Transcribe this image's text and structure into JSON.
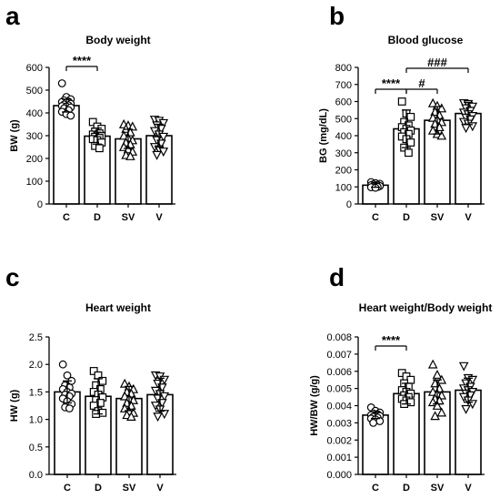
{
  "chart_data": [
    {
      "panel": "a",
      "type": "bar",
      "title": "Body weight",
      "ylabel": "BW (g)",
      "ylim": [
        0,
        600
      ],
      "yticks": [
        "0",
        "100",
        "200",
        "300",
        "400",
        "500",
        "600"
      ],
      "categories": [
        "C",
        "D",
        "SV",
        "V"
      ],
      "values": [
        432,
        298,
        286,
        300
      ],
      "errors": [
        28,
        35,
        42,
        50
      ],
      "markers": [
        "circle",
        "square",
        "triangle-up",
        "triangle-down"
      ],
      "points": [
        [
          530,
          470,
          460,
          455,
          450,
          448,
          445,
          440,
          437,
          433,
          430,
          428,
          424,
          420,
          412,
          405,
          395,
          388
        ],
        [
          360,
          340,
          330,
          318,
          310,
          305,
          300,
          298,
          295,
          290,
          285,
          280,
          270,
          255,
          245
        ],
        [
          350,
          345,
          340,
          330,
          315,
          300,
          290,
          280,
          270,
          262,
          250,
          240,
          230,
          215,
          210
        ],
        [
          370,
          365,
          355,
          345,
          330,
          320,
          305,
          295,
          280,
          265,
          250,
          240,
          230,
          215
        ]
      ],
      "annotations": [
        {
          "from": "C",
          "to": "D",
          "label": "****"
        }
      ]
    },
    {
      "panel": "b",
      "type": "bar",
      "title": "Blood glucose",
      "ylabel": "BG (mg/dL)",
      "ylim": [
        0,
        800
      ],
      "yticks": [
        "0",
        "100",
        "200",
        "300",
        "400",
        "500",
        "600",
        "700",
        "800"
      ],
      "categories": [
        "C",
        "D",
        "SV",
        "V"
      ],
      "values": [
        110,
        440,
        490,
        530
      ],
      "errors": [
        12,
        110,
        80,
        65
      ],
      "markers": [
        "circle",
        "square",
        "triangle-up",
        "triangle-down"
      ],
      "points": [
        [
          128,
          122,
          118,
          115,
          112,
          110,
          108,
          105,
          103,
          100,
          98,
          95
        ],
        [
          600,
          530,
          510,
          480,
          460,
          450,
          440,
          430,
          420,
          410,
          395,
          380,
          360,
          330,
          300
        ],
        [
          590,
          575,
          560,
          540,
          520,
          505,
          495,
          480,
          470,
          450,
          430,
          410,
          400
        ],
        [
          590,
          585,
          570,
          560,
          545,
          535,
          525,
          515,
          505,
          495,
          480,
          470,
          455,
          445
        ]
      ],
      "annotations": [
        {
          "from": "C",
          "to": "D",
          "label": "****"
        },
        {
          "from": "D",
          "to": "SV",
          "label": "#"
        },
        {
          "from": "D",
          "to": "V",
          "label": "###"
        }
      ]
    },
    {
      "panel": "c",
      "type": "bar",
      "title": "Heart weight",
      "ylabel": "HW (g)",
      "ylim": [
        0,
        2.5
      ],
      "yticks": [
        "0.0",
        "0.5",
        "1.0",
        "1.5",
        "2.0",
        "2.5"
      ],
      "categories": [
        "C",
        "D",
        "SV",
        "V"
      ],
      "values": [
        1.5,
        1.42,
        1.38,
        1.45
      ],
      "errors": [
        0.2,
        0.32,
        0.22,
        0.3
      ],
      "markers": [
        "circle",
        "square",
        "triangle-up",
        "triangle-down"
      ],
      "points": [
        [
          2.0,
          1.8,
          1.7,
          1.62,
          1.58,
          1.55,
          1.5,
          1.47,
          1.45,
          1.42,
          1.38,
          1.33,
          1.28,
          1.22,
          1.2
        ],
        [
          1.88,
          1.8,
          1.7,
          1.62,
          1.55,
          1.5,
          1.45,
          1.4,
          1.35,
          1.3,
          1.25,
          1.15,
          1.12,
          1.1
        ],
        [
          1.65,
          1.6,
          1.55,
          1.5,
          1.47,
          1.42,
          1.38,
          1.35,
          1.3,
          1.25,
          1.2,
          1.15,
          1.12,
          1.08,
          1.05
        ],
        [
          1.8,
          1.78,
          1.72,
          1.65,
          1.58,
          1.52,
          1.46,
          1.42,
          1.38,
          1.3,
          1.25,
          1.18,
          1.1,
          1.05
        ]
      ],
      "annotations": []
    },
    {
      "panel": "d",
      "type": "bar",
      "title": "Heart weight/Body weight",
      "ylabel": "HW/BW (g/g)",
      "ylim": [
        0,
        0.008
      ],
      "yticks": [
        "0.000",
        "0.001",
        "0.002",
        "0.003",
        "0.004",
        "0.005",
        "0.006",
        "0.007",
        "0.008"
      ],
      "categories": [
        "C",
        "D",
        "SV",
        "V"
      ],
      "values": [
        0.00345,
        0.0047,
        0.0048,
        0.0049
      ],
      "errors": [
        0.0002,
        0.0006,
        0.0007,
        0.0007
      ],
      "markers": [
        "circle",
        "square",
        "triangle-up",
        "triangle-down"
      ],
      "points": [
        [
          0.0039,
          0.0037,
          0.0036,
          0.00355,
          0.0035,
          0.00345,
          0.0034,
          0.0034,
          0.00335,
          0.0033,
          0.00325,
          0.0032,
          0.0031,
          0.003
        ],
        [
          0.0059,
          0.0057,
          0.0055,
          0.0053,
          0.0051,
          0.0049,
          0.0048,
          0.0047,
          0.0046,
          0.0045,
          0.0044,
          0.0043,
          0.0042,
          0.0041
        ],
        [
          0.0064,
          0.0058,
          0.0055,
          0.0053,
          0.005,
          0.0048,
          0.0047,
          0.0046,
          0.0044,
          0.0043,
          0.0042,
          0.004,
          0.0036,
          0.0034
        ],
        [
          0.0063,
          0.0056,
          0.0055,
          0.0053,
          0.0051,
          0.005,
          0.0049,
          0.0048,
          0.0047,
          0.0046,
          0.0045,
          0.0043,
          0.0041,
          0.0038
        ]
      ],
      "annotations": [
        {
          "from": "C",
          "to": "D",
          "label": "****"
        }
      ]
    }
  ]
}
